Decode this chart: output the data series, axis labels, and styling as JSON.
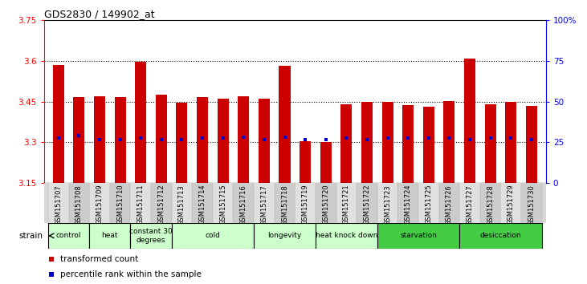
{
  "title": "GDS2830 / 149902_at",
  "ylim_left": [
    3.15,
    3.75
  ],
  "ylim_right": [
    0,
    100
  ],
  "yticks_left": [
    3.15,
    3.3,
    3.45,
    3.6,
    3.75
  ],
  "yticks_right": [
    0,
    25,
    50,
    75,
    100
  ],
  "ytick_labels_left": [
    "3.15",
    "3.3",
    "3.45",
    "3.6",
    "3.75"
  ],
  "ytick_labels_right": [
    "0",
    "25",
    "50",
    "75",
    "100%"
  ],
  "samples": [
    "GSM151707",
    "GSM151708",
    "GSM151709",
    "GSM151710",
    "GSM151711",
    "GSM151712",
    "GSM151713",
    "GSM151714",
    "GSM151715",
    "GSM151716",
    "GSM151717",
    "GSM151718",
    "GSM151719",
    "GSM151720",
    "GSM151721",
    "GSM151722",
    "GSM151723",
    "GSM151724",
    "GSM151725",
    "GSM151726",
    "GSM151727",
    "GSM151728",
    "GSM151729",
    "GSM151730"
  ],
  "bar_values": [
    3.585,
    3.465,
    3.47,
    3.465,
    3.595,
    3.475,
    3.445,
    3.465,
    3.46,
    3.47,
    3.46,
    3.58,
    3.305,
    3.3,
    3.44,
    3.45,
    3.45,
    3.438,
    3.43,
    3.453,
    3.608,
    3.44,
    3.45,
    3.435
  ],
  "percentile_values": [
    3.315,
    3.325,
    3.31,
    3.31,
    3.315,
    3.31,
    3.31,
    3.315,
    3.315,
    3.32,
    3.31,
    3.32,
    3.31,
    3.31,
    3.315,
    3.31,
    3.315,
    3.315,
    3.315,
    3.315,
    3.31,
    3.315,
    3.315,
    3.31
  ],
  "bar_color": "#cc0000",
  "percentile_color": "#0000cc",
  "groups": [
    {
      "label": "control",
      "start": 0,
      "end": 2,
      "color": "#ccffcc"
    },
    {
      "label": "heat",
      "start": 2,
      "end": 4,
      "color": "#ccffcc"
    },
    {
      "label": "constant 30\ndegrees",
      "start": 4,
      "end": 6,
      "color": "#ccffcc"
    },
    {
      "label": "cold",
      "start": 6,
      "end": 10,
      "color": "#ccffcc"
    },
    {
      "label": "longevity",
      "start": 10,
      "end": 13,
      "color": "#ccffcc"
    },
    {
      "label": "heat knock down",
      "start": 13,
      "end": 16,
      "color": "#ccffcc"
    },
    {
      "label": "starvation",
      "start": 16,
      "end": 20,
      "color": "#44cc44"
    },
    {
      "label": "desiccation",
      "start": 20,
      "end": 24,
      "color": "#44cc44"
    }
  ],
  "bar_width": 0.55
}
